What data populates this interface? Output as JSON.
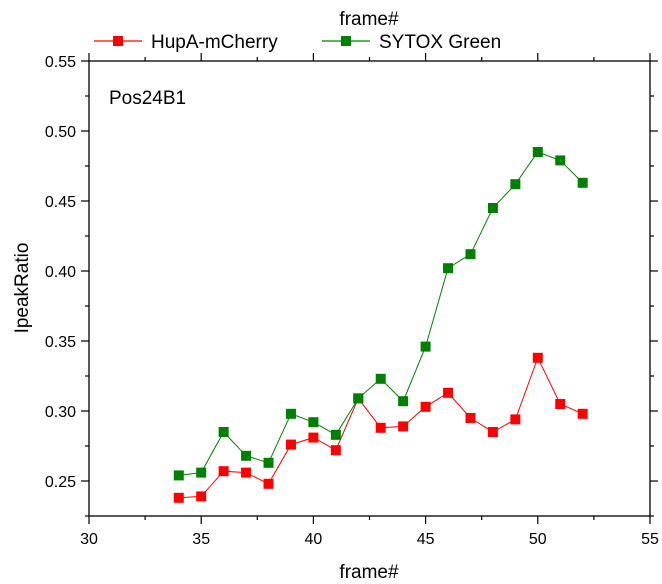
{
  "chart_data": {
    "type": "line",
    "top_label": "frame#",
    "xlabel": "frame#",
    "ylabel": "IpeakRatio",
    "annotation": "Pos24B1",
    "xlim": [
      30,
      55
    ],
    "ylim": [
      0.225,
      0.55
    ],
    "x_ticks": [
      30,
      35,
      40,
      45,
      50,
      55
    ],
    "y_ticks": [
      0.25,
      0.3,
      0.35,
      0.4,
      0.45,
      0.5,
      0.55
    ],
    "y_tick_labels": [
      "0.25",
      "0.30",
      "0.35",
      "0.40",
      "0.45",
      "0.50",
      "0.55"
    ],
    "grid": false,
    "legend_position": "top",
    "x": [
      34,
      35,
      36,
      37,
      38,
      39,
      40,
      41,
      42,
      43,
      44,
      45,
      46,
      47,
      48,
      49,
      50,
      51,
      52
    ],
    "series": [
      {
        "name": "HupA-mCherry",
        "color": "#ff0000",
        "values": [
          0.238,
          0.239,
          0.257,
          0.256,
          0.248,
          0.276,
          0.281,
          0.272,
          0.309,
          0.288,
          0.289,
          0.303,
          0.313,
          0.295,
          0.285,
          0.294,
          0.338,
          0.305,
          0.298
        ]
      },
      {
        "name": "SYTOX Green",
        "color": "#008000",
        "values": [
          0.254,
          0.256,
          0.285,
          0.268,
          0.263,
          0.298,
          0.292,
          0.283,
          0.309,
          0.323,
          0.307,
          0.346,
          0.402,
          0.412,
          0.445,
          0.462,
          0.485,
          0.479,
          0.463
        ]
      }
    ]
  }
}
